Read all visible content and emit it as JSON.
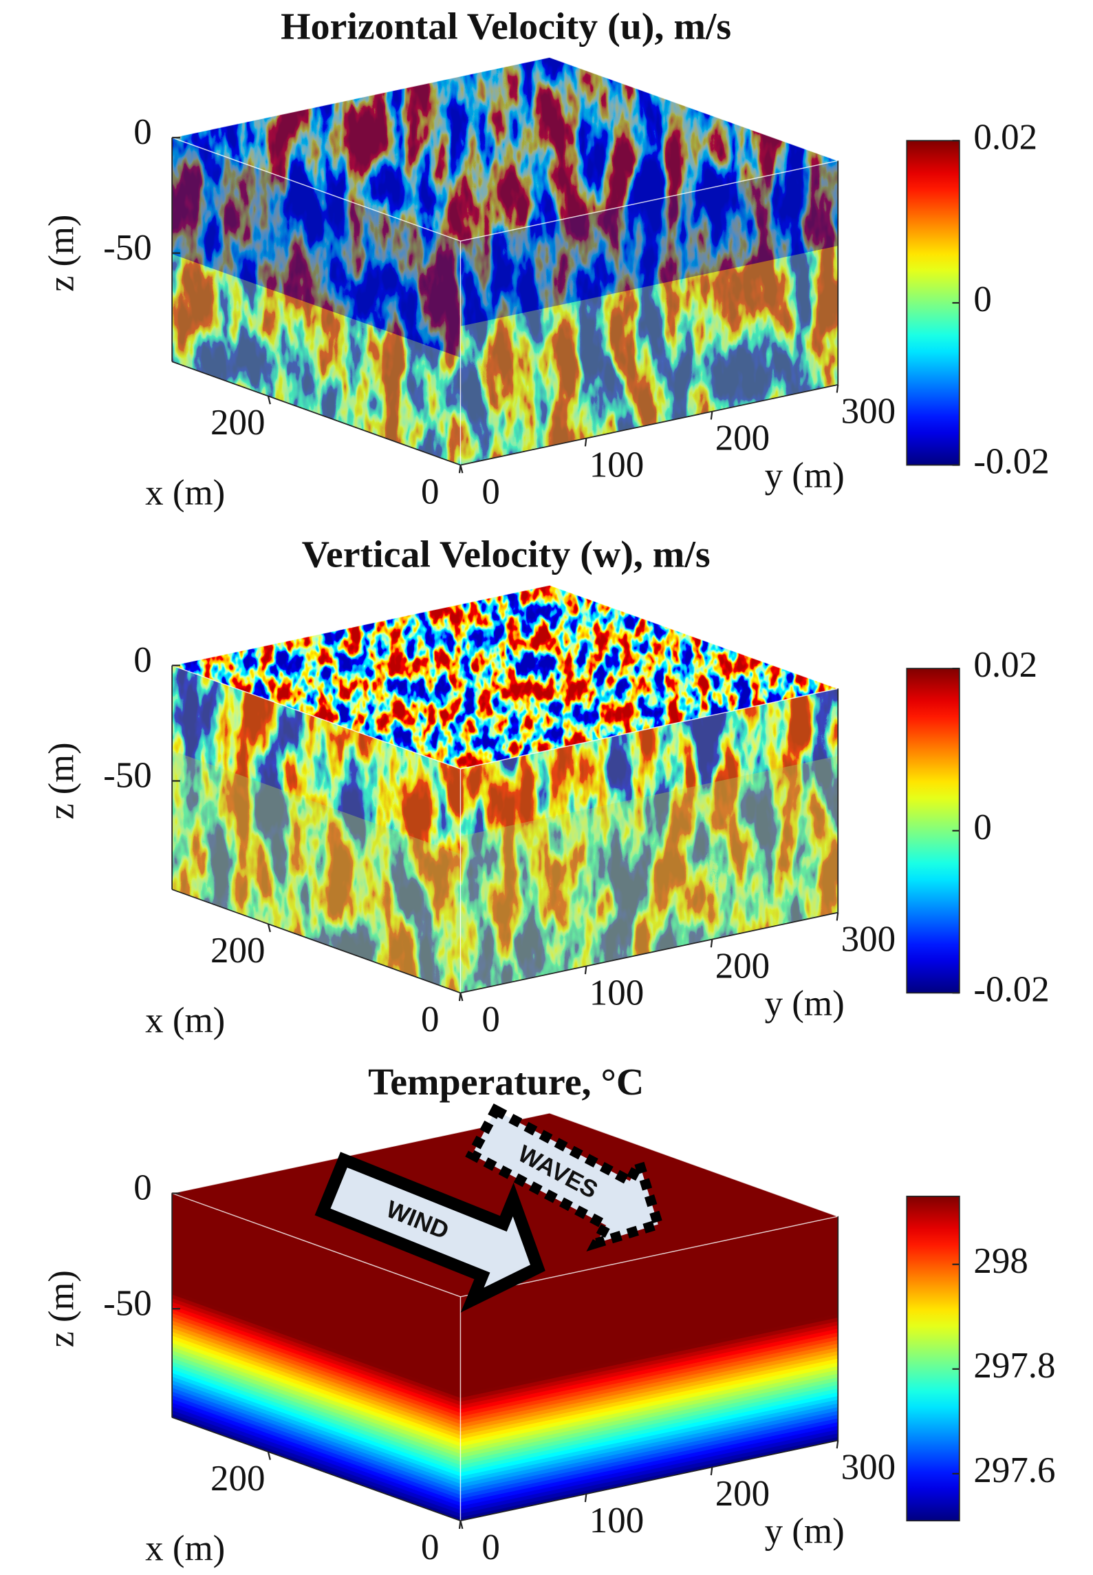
{
  "chart_data": [
    {
      "type": "volume",
      "title": "Horizontal Velocity (u), m/s",
      "xlabel": "x (m)",
      "ylabel": "y (m)",
      "zlabel": "z (m)",
      "xlim": [
        0,
        300
      ],
      "ylim": [
        0,
        300
      ],
      "zlim": [
        -97,
        0
      ],
      "xticks": [
        0,
        200
      ],
      "yticks": [
        0,
        100,
        200,
        300
      ],
      "zticks": [
        -50,
        0
      ],
      "colormap": "jet",
      "clim": [
        -0.02,
        0.02
      ],
      "cticks": [
        -0.02,
        0,
        0.02
      ]
    },
    {
      "type": "volume",
      "title": "Vertical Velocity (w), m/s",
      "xlabel": "x (m)",
      "ylabel": "y (m)",
      "zlabel": "z (m)",
      "xlim": [
        0,
        300
      ],
      "ylim": [
        0,
        300
      ],
      "zlim": [
        -97,
        0
      ],
      "xticks": [
        0,
        200
      ],
      "yticks": [
        0,
        100,
        200,
        300
      ],
      "zticks": [
        -50,
        0
      ],
      "colormap": "jet",
      "clim": [
        -0.02,
        0.02
      ],
      "cticks": [
        -0.02,
        0,
        0.02
      ]
    },
    {
      "type": "volume",
      "title": "Temperature, °C",
      "xlabel": "x (m)",
      "ylabel": "y (m)",
      "zlabel": "z (m)",
      "xlim": [
        0,
        300
      ],
      "ylim": [
        0,
        300
      ],
      "zlim": [
        -97,
        0
      ],
      "xticks": [
        0,
        200
      ],
      "yticks": [
        0,
        100,
        200,
        300
      ],
      "zticks": [
        -50,
        0
      ],
      "colormap": "jet",
      "clim": [
        297.51,
        298.13
      ],
      "cticks": [
        297.6,
        297.8,
        298
      ],
      "annotations": [
        "WIND",
        "WAVES"
      ]
    }
  ]
}
